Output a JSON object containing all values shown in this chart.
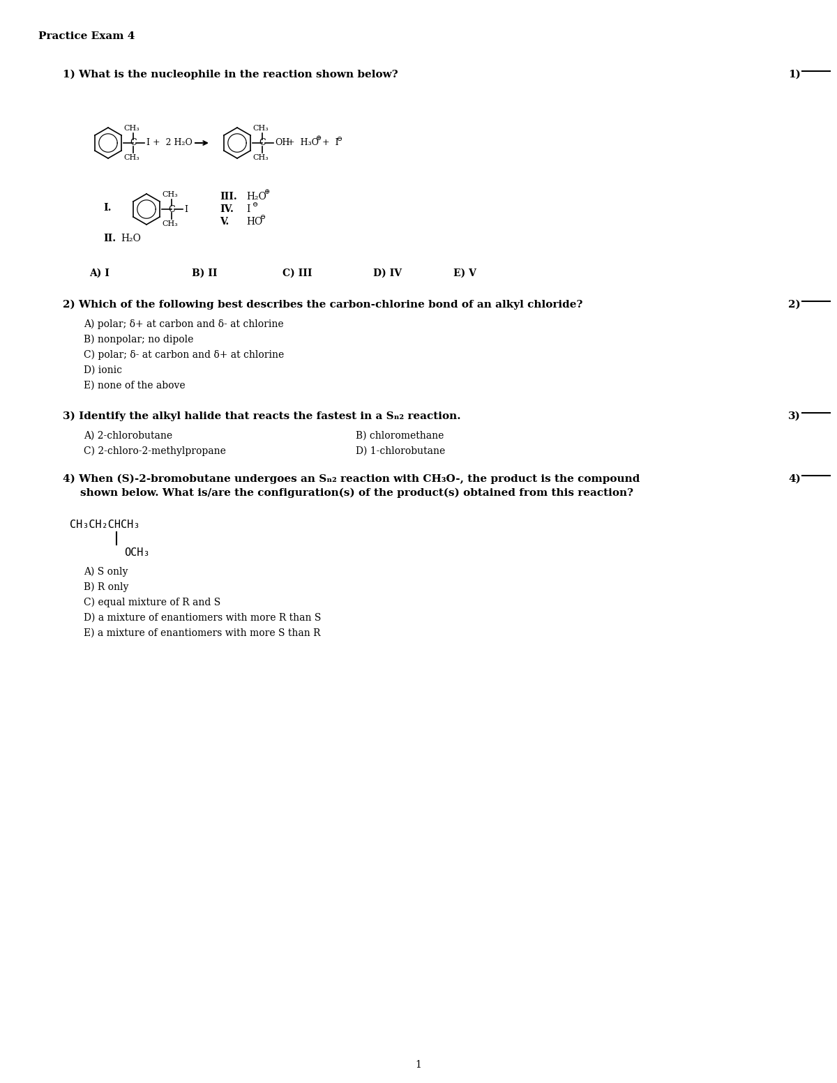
{
  "title": "Practice Exam 4",
  "page_num": "1",
  "background": "#ffffff",
  "text_color": "#000000",
  "font_family": "DejaVu Serif",
  "mono_family": "DejaVu Sans Mono",
  "q1_text": "1) What is the nucleophile in the reaction shown below?",
  "q1_number": "1)",
  "q2_text": "2) Which of the following best describes the carbon-chlorine bond of an alkyl chloride?",
  "q2_number": "2)",
  "q2_answers": [
    "A) polar; δ+ at carbon and δ- at chlorine",
    "B) nonpolar; no dipole",
    "C) polar; δ- at carbon and δ+ at chlorine",
    "D) ionic",
    "E) none of the above"
  ],
  "q3_text": "3) Identify the alkyl halide that reacts the fastest in a Sₙ₂ reaction.",
  "q3_number": "3)",
  "q3_answers_left": [
    "A) 2-chlorobutane",
    "C) 2-chloro-2-methylpropane"
  ],
  "q3_answers_right": [
    "B) chloromethane",
    "D) 1-chlorobutane"
  ],
  "q4_text_line1": "4) When (S)-2-bromobutane undergoes an Sₙ₂ reaction with CH₃O-, the product is the compound",
  "q4_text_line2": "shown below. What is/are the configuration(s) of the product(s) obtained from this reaction?",
  "q4_number": "4)",
  "q4_struct_line1": "CH₃CH₂CHCH₃",
  "q4_struct_line2": "OCH₃",
  "q4_answers": [
    "A) S only",
    "B) R only",
    "C) equal mixture of R and S",
    "D) a mixture of enantiomers with more R than S",
    "E) a mixture of enantiomers with more S than R"
  ],
  "q1_mc_answers": [
    "A) I",
    "B) II",
    "C) III",
    "D) IV",
    "E) V"
  ]
}
